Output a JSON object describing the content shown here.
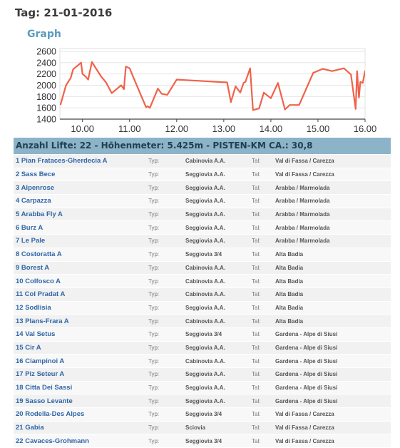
{
  "header": {
    "day": "Tag: 21-01-2016",
    "graph_heading": "Graph"
  },
  "chart_data": {
    "type": "line",
    "title": "",
    "xlabel": "",
    "ylabel": "",
    "x_ticks": [
      10,
      11,
      12,
      13,
      14,
      15,
      16
    ],
    "x_tick_labels": [
      "10.00",
      "11.00",
      "12.00",
      "13.00",
      "14.00",
      "15.00",
      "16.00"
    ],
    "y_ticks": [
      1400,
      1600,
      1800,
      2000,
      2200,
      2400,
      2600
    ],
    "xlim": [
      9.52,
      16.0
    ],
    "ylim": [
      1400,
      2650
    ],
    "grid": true,
    "series": [
      {
        "color": "#f0624a",
        "x": [
          9.53,
          9.65,
          9.75,
          9.8,
          9.97,
          10.0,
          10.07,
          10.12,
          10.2,
          10.4,
          10.5,
          10.62,
          10.82,
          10.88,
          10.92,
          11.0,
          11.1,
          11.35,
          11.38,
          11.43,
          11.6,
          11.68,
          11.8,
          12.0,
          13.07,
          13.12,
          13.15,
          13.25,
          13.35,
          13.42,
          13.46,
          13.56,
          13.62,
          13.75,
          13.85,
          14.0,
          14.15,
          14.3,
          14.4,
          14.6,
          14.9,
          15.1,
          15.3,
          15.55,
          15.7,
          15.8,
          15.83,
          15.87,
          15.9,
          15.95,
          16.0,
          16.05,
          16.1,
          16.18,
          16.25,
          16.32
        ],
        "y": [
          1650,
          2000,
          2130,
          2280,
          2400,
          2200,
          2150,
          2100,
          2410,
          2150,
          2050,
          1860,
          2000,
          1930,
          2330,
          2300,
          2100,
          1610,
          1630,
          1600,
          1940,
          1850,
          1830,
          2100,
          2050,
          1840,
          1700,
          1980,
          1870,
          2040,
          2060,
          2300,
          1560,
          1590,
          1870,
          1770,
          2040,
          1570,
          1650,
          1650,
          2220,
          2290,
          2250,
          2300,
          2190,
          1580,
          2250,
          1780,
          2060,
          2040,
          2250,
          2210,
          2380,
          2340,
          2220,
          2320
        ]
      }
    ]
  },
  "summary": "Anzahl Lifte: 22 - Höhenmeter: 5.425m - PISTEN-KM CA.: 30,8",
  "labels": {
    "typ": "Typ:",
    "tal": "Tal:"
  },
  "lifts": [
    {
      "name": "1 Pian Frataces-Gherdecia A",
      "type": "Cabinovia A.A.",
      "region": "Val di Fassa / Carezza"
    },
    {
      "name": "2 Sass Bece",
      "type": "Seggiovia A.A.",
      "region": "Val di Fassa / Carezza"
    },
    {
      "name": "3 Alpenrose",
      "type": "Seggiovia A.A.",
      "region": "Arabba / Marmolada"
    },
    {
      "name": "4 Carpazza",
      "type": "Seggiovia A.A.",
      "region": "Arabba / Marmolada"
    },
    {
      "name": "5 Arabba Fly A",
      "type": "Seggiovia A.A.",
      "region": "Arabba / Marmolada"
    },
    {
      "name": "6 Burz A",
      "type": "Seggiovia A.A.",
      "region": "Arabba / Marmolada"
    },
    {
      "name": "7 Le Pale",
      "type": "Seggiovia A.A.",
      "region": "Arabba / Marmolada"
    },
    {
      "name": "8 Costoratta A",
      "type": "Seggiovia 3/4",
      "region": "Alta Badia"
    },
    {
      "name": "9 Borest A",
      "type": "Cabinovia A.A.",
      "region": "Alta Badia"
    },
    {
      "name": "10 Colfosco A",
      "type": "Cabinovia A.A.",
      "region": "Alta Badia"
    },
    {
      "name": "11 Col Pradat A",
      "type": "Cabinovia A.A.",
      "region": "Alta Badia"
    },
    {
      "name": "12 Sodlisia",
      "type": "Seggiovia A.A.",
      "region": "Alta Badia"
    },
    {
      "name": "13 Plans-Frara A",
      "type": "Cabinovia A.A.",
      "region": "Alta Badia"
    },
    {
      "name": "14 Val Setus",
      "type": "Seggiovia 3/4",
      "region": "Gardena - Alpe di Siusi"
    },
    {
      "name": "15 Cir A",
      "type": "Seggiovia A.A.",
      "region": "Gardena - Alpe di Siusi"
    },
    {
      "name": "16 Ciampinoi A",
      "type": "Cabinovia A.A.",
      "region": "Gardena - Alpe di Siusi"
    },
    {
      "name": "17 Piz Seteur A",
      "type": "Seggiovia A.A.",
      "region": "Gardena - Alpe di Siusi"
    },
    {
      "name": "18 Citta Dei Sassi",
      "type": "Seggiovia A.A.",
      "region": "Gardena - Alpe di Siusi"
    },
    {
      "name": "19 Sasso Levante",
      "type": "Seggiovia A.A.",
      "region": "Gardena - Alpe di Siusi"
    },
    {
      "name": "20 Rodella-Des Alpes",
      "type": "Seggiovia 3/4",
      "region": "Val di Fassa / Carezza"
    },
    {
      "name": "21 Gabia",
      "type": "Sciovia",
      "region": "Val di Fassa / Carezza"
    },
    {
      "name": "22 Cavaces-Grohmann",
      "type": "Seggiovia 3/4",
      "region": "Val di Fassa / Carezza"
    }
  ]
}
